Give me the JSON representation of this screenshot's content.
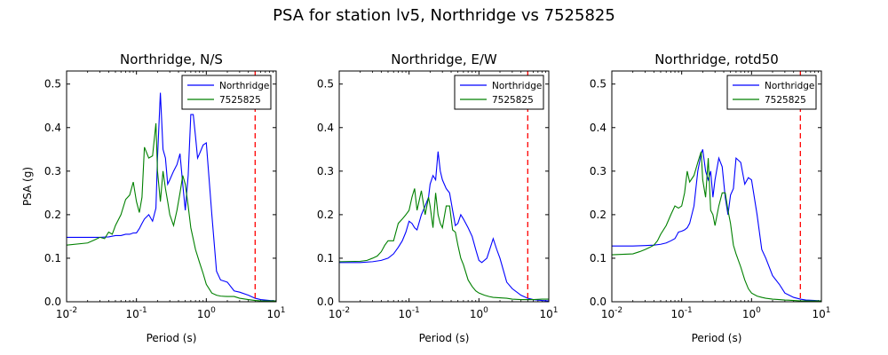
{
  "figure": {
    "suptitle": "PSA for station lv5, Northridge vs 7525825"
  },
  "chart_data": [
    {
      "type": "line",
      "title": "Northridge, N/S",
      "xlabel": "Period (s)",
      "ylabel": "PSA (g)",
      "xscale": "log",
      "xlim": [
        0.01,
        10
      ],
      "ylim": [
        0,
        0.53
      ],
      "x_ticks": [
        {
          "value": 0.01,
          "base": "10",
          "exp": "-2"
        },
        {
          "value": 0.1,
          "base": "10",
          "exp": "-1"
        },
        {
          "value": 1,
          "base": "10",
          "exp": "0"
        },
        {
          "value": 10,
          "base": "10",
          "exp": "1"
        }
      ],
      "y_ticks": [
        "0.0",
        "0.1",
        "0.2",
        "0.3",
        "0.4",
        "0.5"
      ],
      "legend": {
        "placement": "upper-right"
      },
      "vline": {
        "x": 5,
        "color": "#ff0000",
        "style": "dashed"
      },
      "series": [
        {
          "name": "Northridge",
          "color": "#0000ff",
          "x": [
            0.01,
            0.02,
            0.03,
            0.04,
            0.05,
            0.06,
            0.07,
            0.08,
            0.09,
            0.1,
            0.11,
            0.12,
            0.13,
            0.15,
            0.17,
            0.19,
            0.2,
            0.22,
            0.24,
            0.26,
            0.28,
            0.3,
            0.34,
            0.38,
            0.42,
            0.46,
            0.5,
            0.55,
            0.6,
            0.65,
            0.7,
            0.75,
            0.8,
            0.9,
            1.0,
            1.2,
            1.4,
            1.6,
            2.0,
            2.5,
            3.0,
            4.0,
            5.0,
            6.0,
            8.0,
            10.0
          ],
          "y": [
            0.148,
            0.148,
            0.148,
            0.149,
            0.152,
            0.152,
            0.155,
            0.155,
            0.158,
            0.158,
            0.168,
            0.18,
            0.19,
            0.2,
            0.185,
            0.215,
            0.33,
            0.48,
            0.35,
            0.33,
            0.27,
            0.28,
            0.3,
            0.315,
            0.34,
            0.27,
            0.21,
            0.29,
            0.43,
            0.43,
            0.38,
            0.33,
            0.34,
            0.36,
            0.365,
            0.2,
            0.07,
            0.05,
            0.045,
            0.025,
            0.022,
            0.015,
            0.008,
            0.005,
            0.003,
            0.002
          ]
        },
        {
          "name": "7525825",
          "color": "#008000",
          "x": [
            0.01,
            0.02,
            0.025,
            0.03,
            0.035,
            0.04,
            0.045,
            0.05,
            0.06,
            0.07,
            0.08,
            0.09,
            0.1,
            0.11,
            0.12,
            0.13,
            0.15,
            0.17,
            0.19,
            0.2,
            0.22,
            0.24,
            0.26,
            0.28,
            0.3,
            0.34,
            0.38,
            0.42,
            0.46,
            0.5,
            0.55,
            0.6,
            0.7,
            0.8,
            0.9,
            1.0,
            1.2,
            1.4,
            1.6,
            2.0,
            2.5,
            3.0,
            4.0,
            5.0,
            6.0,
            8.0,
            10.0
          ],
          "y": [
            0.13,
            0.135,
            0.142,
            0.148,
            0.145,
            0.16,
            0.155,
            0.175,
            0.2,
            0.235,
            0.245,
            0.275,
            0.23,
            0.205,
            0.24,
            0.355,
            0.33,
            0.335,
            0.41,
            0.3,
            0.23,
            0.3,
            0.26,
            0.23,
            0.2,
            0.175,
            0.21,
            0.25,
            0.29,
            0.27,
            0.22,
            0.17,
            0.12,
            0.09,
            0.065,
            0.04,
            0.02,
            0.015,
            0.013,
            0.012,
            0.012,
            0.008,
            0.005,
            0.003,
            0.002,
            0.002,
            0.002
          ]
        }
      ]
    },
    {
      "type": "line",
      "title": "Northridge, E/W",
      "xlabel": "Period (s)",
      "ylabel": "",
      "xscale": "log",
      "xlim": [
        0.01,
        10
      ],
      "ylim": [
        0,
        0.53
      ],
      "x_ticks": [
        {
          "value": 0.01,
          "base": "10",
          "exp": "-2"
        },
        {
          "value": 0.1,
          "base": "10",
          "exp": "-1"
        },
        {
          "value": 1,
          "base": "10",
          "exp": "0"
        },
        {
          "value": 10,
          "base": "10",
          "exp": "1"
        }
      ],
      "y_ticks": [
        "0.0",
        "0.1",
        "0.2",
        "0.3",
        "0.4",
        "0.5"
      ],
      "legend": {
        "placement": "upper-right"
      },
      "vline": {
        "x": 5,
        "color": "#ff0000",
        "style": "dashed"
      },
      "series": [
        {
          "name": "Northridge",
          "color": "#0000ff",
          "x": [
            0.01,
            0.02,
            0.03,
            0.04,
            0.05,
            0.06,
            0.07,
            0.08,
            0.09,
            0.1,
            0.11,
            0.12,
            0.13,
            0.15,
            0.17,
            0.19,
            0.2,
            0.22,
            0.24,
            0.26,
            0.28,
            0.3,
            0.34,
            0.38,
            0.42,
            0.46,
            0.5,
            0.55,
            0.6,
            0.7,
            0.8,
            0.9,
            1.0,
            1.1,
            1.3,
            1.6,
            1.8,
            2.0,
            2.5,
            3.0,
            4.0,
            5.0,
            6.0,
            8.0,
            10.0
          ],
          "y": [
            0.09,
            0.09,
            0.092,
            0.095,
            0.1,
            0.11,
            0.125,
            0.14,
            0.16,
            0.185,
            0.18,
            0.17,
            0.165,
            0.2,
            0.22,
            0.24,
            0.27,
            0.29,
            0.28,
            0.345,
            0.3,
            0.28,
            0.26,
            0.25,
            0.21,
            0.175,
            0.18,
            0.2,
            0.19,
            0.17,
            0.15,
            0.12,
            0.095,
            0.09,
            0.1,
            0.145,
            0.12,
            0.1,
            0.045,
            0.03,
            0.015,
            0.008,
            0.005,
            0.003,
            0.002
          ]
        },
        {
          "name": "7525825",
          "color": "#008000",
          "x": [
            0.01,
            0.02,
            0.025,
            0.03,
            0.035,
            0.04,
            0.045,
            0.05,
            0.06,
            0.07,
            0.08,
            0.09,
            0.1,
            0.11,
            0.12,
            0.13,
            0.15,
            0.17,
            0.19,
            0.2,
            0.22,
            0.24,
            0.26,
            0.28,
            0.3,
            0.34,
            0.38,
            0.42,
            0.46,
            0.5,
            0.55,
            0.6,
            0.7,
            0.8,
            0.9,
            1.0,
            1.2,
            1.4,
            1.6,
            2.0,
            2.5,
            3.0,
            4.0,
            5.0,
            6.0,
            8.0,
            10.0
          ],
          "y": [
            0.092,
            0.093,
            0.095,
            0.1,
            0.105,
            0.115,
            0.13,
            0.14,
            0.14,
            0.18,
            0.19,
            0.2,
            0.21,
            0.24,
            0.26,
            0.21,
            0.255,
            0.2,
            0.24,
            0.22,
            0.17,
            0.25,
            0.2,
            0.18,
            0.17,
            0.22,
            0.22,
            0.165,
            0.16,
            0.13,
            0.1,
            0.085,
            0.05,
            0.035,
            0.025,
            0.02,
            0.015,
            0.012,
            0.01,
            0.009,
            0.008,
            0.006,
            0.005,
            0.005,
            0.005,
            0.006,
            0.006
          ]
        }
      ]
    },
    {
      "type": "line",
      "title": "Northridge, rotd50",
      "xlabel": "Period (s)",
      "ylabel": "",
      "xscale": "log",
      "xlim": [
        0.01,
        10
      ],
      "ylim": [
        0,
        0.53
      ],
      "x_ticks": [
        {
          "value": 0.01,
          "base": "10",
          "exp": "-2"
        },
        {
          "value": 0.1,
          "base": "10",
          "exp": "-1"
        },
        {
          "value": 1,
          "base": "10",
          "exp": "0"
        },
        {
          "value": 10,
          "base": "10",
          "exp": "1"
        }
      ],
      "y_ticks": [
        "0.0",
        "0.1",
        "0.2",
        "0.3",
        "0.4",
        "0.5"
      ],
      "legend": {
        "placement": "upper-right"
      },
      "vline": {
        "x": 5,
        "color": "#ff0000",
        "style": "dashed"
      },
      "series": [
        {
          "name": "Northridge",
          "color": "#0000ff",
          "x": [
            0.01,
            0.02,
            0.03,
            0.04,
            0.05,
            0.06,
            0.07,
            0.08,
            0.09,
            0.1,
            0.11,
            0.12,
            0.13,
            0.15,
            0.17,
            0.19,
            0.2,
            0.22,
            0.24,
            0.26,
            0.28,
            0.3,
            0.34,
            0.38,
            0.42,
            0.46,
            0.5,
            0.55,
            0.6,
            0.7,
            0.8,
            0.9,
            1.0,
            1.2,
            1.4,
            1.6,
            2.0,
            2.5,
            3.0,
            4.0,
            5.0,
            6.0,
            8.0,
            10.0
          ],
          "y": [
            0.128,
            0.128,
            0.129,
            0.13,
            0.132,
            0.135,
            0.14,
            0.145,
            0.16,
            0.162,
            0.165,
            0.17,
            0.18,
            0.22,
            0.3,
            0.34,
            0.35,
            0.3,
            0.28,
            0.3,
            0.24,
            0.28,
            0.33,
            0.31,
            0.24,
            0.2,
            0.245,
            0.26,
            0.33,
            0.32,
            0.27,
            0.285,
            0.28,
            0.2,
            0.12,
            0.1,
            0.06,
            0.04,
            0.02,
            0.01,
            0.006,
            0.004,
            0.003,
            0.002
          ]
        },
        {
          "name": "7525825",
          "color": "#008000",
          "x": [
            0.01,
            0.02,
            0.025,
            0.03,
            0.035,
            0.04,
            0.045,
            0.05,
            0.06,
            0.07,
            0.08,
            0.09,
            0.1,
            0.11,
            0.12,
            0.13,
            0.15,
            0.17,
            0.19,
            0.2,
            0.22,
            0.24,
            0.26,
            0.28,
            0.3,
            0.34,
            0.38,
            0.42,
            0.46,
            0.5,
            0.55,
            0.6,
            0.7,
            0.8,
            0.9,
            1.0,
            1.2,
            1.4,
            1.6,
            2.0,
            2.5,
            3.0,
            4.0,
            5.0,
            6.0,
            8.0,
            10.0
          ],
          "y": [
            0.108,
            0.11,
            0.115,
            0.12,
            0.125,
            0.13,
            0.14,
            0.155,
            0.175,
            0.2,
            0.22,
            0.215,
            0.22,
            0.25,
            0.3,
            0.275,
            0.29,
            0.32,
            0.345,
            0.28,
            0.24,
            0.33,
            0.21,
            0.2,
            0.175,
            0.22,
            0.25,
            0.25,
            0.21,
            0.18,
            0.13,
            0.11,
            0.08,
            0.05,
            0.03,
            0.02,
            0.013,
            0.01,
            0.008,
            0.006,
            0.005,
            0.004,
            0.003,
            0.002,
            0.002,
            0.002,
            0.002
          ]
        }
      ]
    }
  ]
}
